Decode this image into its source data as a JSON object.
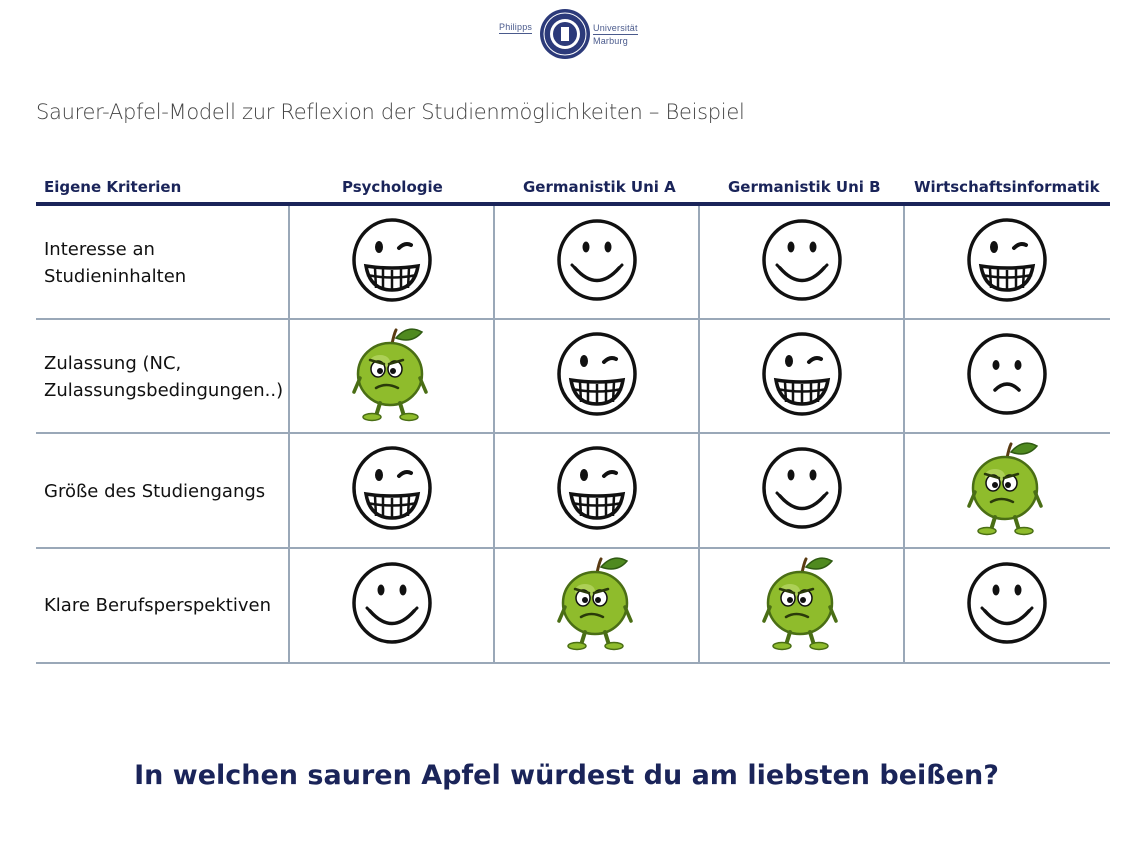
{
  "logo": {
    "left_text": "Philipps",
    "right_top": "Universität",
    "right_bottom": "Marburg"
  },
  "title": "Saurer-Apfel-Modell zur Reflexion der Studienmöglichkeiten – Beispiel",
  "table": {
    "headers": [
      "Eigene Kriterien",
      "Psychologie",
      "Germanistik Uni A",
      "Germanistik Uni B",
      "Wirtschaftsinformatik"
    ],
    "rows": [
      {
        "criterion": "Interesse an\nStudieninhalten",
        "cells": [
          "grin",
          "smile",
          "smile",
          "grin"
        ]
      },
      {
        "criterion": "Zulassung (NC,\nZulassungsbedingungen..)",
        "cells": [
          "apple",
          "grin",
          "grin",
          "sad"
        ]
      },
      {
        "criterion": "Größe des Studiengangs",
        "cells": [
          "grin",
          "grin",
          "smile",
          "apple"
        ]
      },
      {
        "criterion": "Klare Berufsperspektiven",
        "cells": [
          "smile",
          "apple",
          "apple",
          "smile"
        ]
      }
    ]
  },
  "question": "In welchen sauren Apfel würdest du am liebsten beißen?"
}
